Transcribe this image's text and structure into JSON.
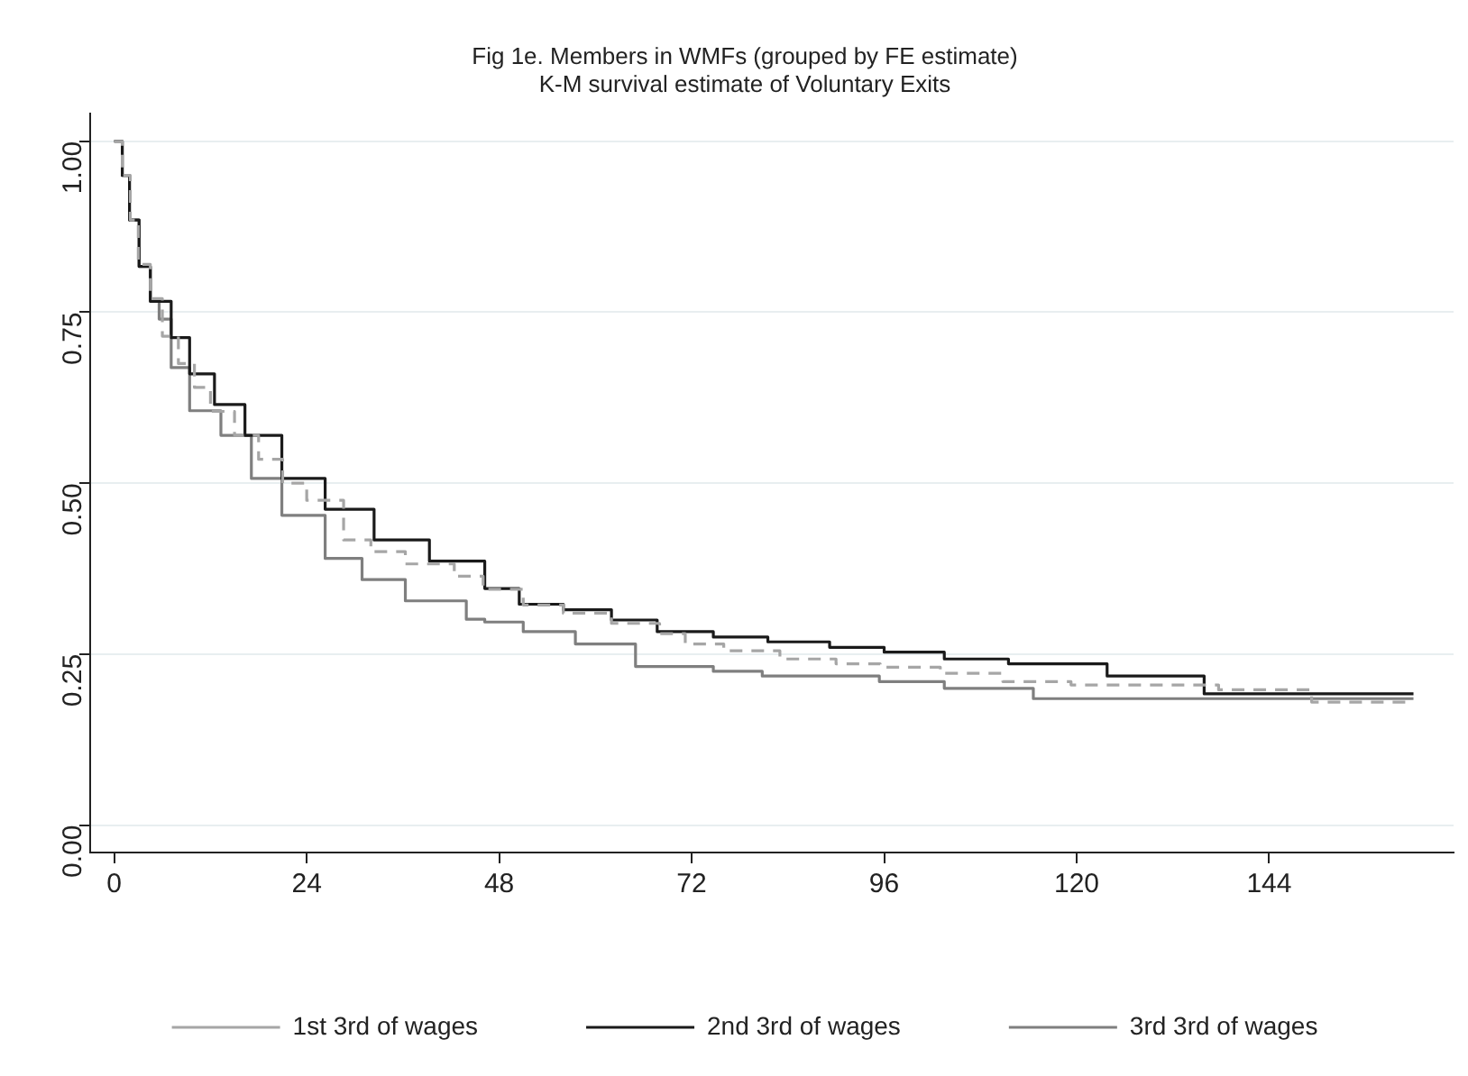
{
  "chart_data": {
    "type": "step",
    "title": "Fig 1e. Members in WMFs (grouped by FE estimate)",
    "subtitle": "K-M survival estimate of Voluntary Exits",
    "xlim": [
      -3,
      167
    ],
    "xticks": [
      0,
      24,
      48,
      72,
      96,
      120,
      144
    ],
    "ylim": [
      -0.04,
      1.04
    ],
    "yticks": [
      {
        "value": 0,
        "label": "0.00"
      },
      {
        "value": 0.25,
        "label": "0.25"
      },
      {
        "value": 0.5,
        "label": "0.50"
      },
      {
        "value": 0.75,
        "label": "0.75"
      },
      {
        "value": 1,
        "label": "1.00"
      }
    ],
    "grid": "y",
    "legend": "bottom",
    "marker": "none",
    "series": [
      {
        "name": "1st 3rd of wages",
        "color": "#a6a6a6",
        "line_style": "dashed",
        "x": [
          0,
          1,
          2,
          3,
          4.5,
          6,
          8,
          10,
          12,
          15,
          18,
          21,
          24,
          28.6,
          32,
          36.3,
          42.4,
          46,
          51,
          56,
          62,
          68,
          71.2,
          76,
          83,
          90,
          95.5,
          103,
          110.8,
          119.3,
          125,
          137.7,
          149.3,
          162
        ],
        "values": [
          1,
          0.95,
          0.885,
          0.82,
          0.77,
          0.715,
          0.675,
          0.64,
          0.605,
          0.57,
          0.535,
          0.5,
          0.475,
          0.417,
          0.4,
          0.382,
          0.364,
          0.345,
          0.322,
          0.31,
          0.295,
          0.28,
          0.265,
          0.255,
          0.243,
          0.236,
          0.231,
          0.222,
          0.21,
          0.205,
          0.205,
          0.198,
          0.18,
          0.18
        ]
      },
      {
        "name": "2nd 3rd of wages",
        "color": "#1a1a1a",
        "line_style": "solid",
        "x": [
          0,
          1,
          1.9,
          3.1,
          4.5,
          7.1,
          9.4,
          12.5,
          16.3,
          20.9,
          26.3,
          32.4,
          39.3,
          46.2,
          50.5,
          56,
          62,
          67.7,
          74.7,
          81.5,
          89.2,
          96,
          103.5,
          111.5,
          123.8,
          135.9,
          162
        ],
        "values": [
          1,
          0.95,
          0.885,
          0.817,
          0.766,
          0.713,
          0.66,
          0.615,
          0.57,
          0.507,
          0.462,
          0.417,
          0.386,
          0.346,
          0.323,
          0.315,
          0.3,
          0.283,
          0.275,
          0.268,
          0.26,
          0.253,
          0.243,
          0.236,
          0.218,
          0.192,
          0.192
        ]
      },
      {
        "name": "3rd 3rd of wages",
        "color": "#7f7f7f",
        "line_style": "solid",
        "x": [
          0,
          1,
          1.9,
          3.1,
          4.5,
          5.6,
          7.1,
          9.4,
          13.3,
          17.1,
          20.9,
          26.3,
          30.9,
          36.3,
          43.9,
          46.2,
          51,
          57.5,
          65,
          74.7,
          80.8,
          95.4,
          103.5,
          114.6,
          162
        ],
        "values": [
          1,
          0.95,
          0.885,
          0.817,
          0.766,
          0.74,
          0.669,
          0.606,
          0.57,
          0.507,
          0.453,
          0.39,
          0.359,
          0.328,
          0.301,
          0.297,
          0.283,
          0.265,
          0.232,
          0.225,
          0.218,
          0.21,
          0.2,
          0.185,
          0.185
        ]
      }
    ]
  }
}
